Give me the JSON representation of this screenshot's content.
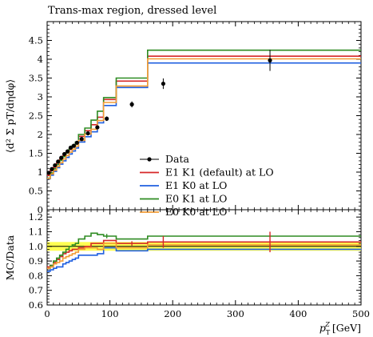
{
  "chart_data": [
    {
      "type": "line",
      "panel": "main",
      "title": "Trans-max region, dressed level",
      "ylabel": "⟨d² Σ pT/dηdφ⟩",
      "xlim": [
        0,
        500
      ],
      "ylim": [
        0,
        5
      ],
      "yticks": [
        "0",
        "0.5",
        "1",
        "1.5",
        "2",
        "2.5",
        "3",
        "3.5",
        "4",
        "4.5"
      ],
      "data_points": {
        "name": "Data",
        "x": [
          2.5,
          7.5,
          12.5,
          17.5,
          22.5,
          27.5,
          32.5,
          37.5,
          42.5,
          47.5,
          55,
          65,
          80,
          95,
          135,
          185,
          355
        ],
        "y": [
          0.98,
          1.08,
          1.18,
          1.28,
          1.38,
          1.48,
          1.55,
          1.65,
          1.7,
          1.78,
          1.88,
          2.03,
          2.19,
          2.42,
          2.8,
          3.35,
          3.97
        ],
        "yerr": [
          0.02,
          0.02,
          0.02,
          0.02,
          0.02,
          0.02,
          0.02,
          0.03,
          0.03,
          0.03,
          0.04,
          0.04,
          0.05,
          0.06,
          0.08,
          0.14,
          0.28
        ]
      },
      "bin_edges": [
        0,
        5,
        10,
        15,
        20,
        25,
        30,
        35,
        40,
        45,
        50,
        60,
        70,
        80,
        90,
        110,
        160,
        210,
        500
      ],
      "series": [
        {
          "name": "E1 K1 (default) at LO",
          "color": "#d62728",
          "values": [
            0.91,
            1.04,
            1.13,
            1.24,
            1.34,
            1.43,
            1.51,
            1.6,
            1.68,
            1.76,
            1.95,
            2.1,
            2.26,
            2.46,
            2.93,
            3.42,
            4.08,
            4.08
          ]
        },
        {
          "name": "E1 K0 at LO",
          "color": "#1f5fe0",
          "values": [
            0.82,
            0.92,
            1.02,
            1.12,
            1.21,
            1.3,
            1.39,
            1.48,
            1.56,
            1.64,
            1.8,
            1.94,
            2.07,
            2.31,
            2.77,
            3.25,
            3.9,
            3.9
          ]
        },
        {
          "name": "E0 K1 at LO",
          "color": "#2e8b22",
          "values": [
            0.84,
            0.98,
            1.09,
            1.2,
            1.31,
            1.41,
            1.51,
            1.62,
            1.71,
            1.8,
            2.0,
            2.17,
            2.38,
            2.62,
            2.98,
            3.5,
            4.24,
            4.24
          ]
        },
        {
          "name": "E0 K0 at LO",
          "color": "#f39c34",
          "values": [
            0.83,
            0.95,
            1.05,
            1.15,
            1.25,
            1.35,
            1.44,
            1.53,
            1.61,
            1.69,
            1.84,
            2.01,
            2.14,
            2.37,
            2.85,
            3.29,
            4.01,
            4.01
          ]
        }
      ],
      "legend": {
        "position": "center-right",
        "data_label": "Data"
      },
      "grid": false
    },
    {
      "type": "line",
      "panel": "ratio",
      "ylabel": "MC/Data",
      "xlabel": "pTZ [GeV]",
      "xlim": [
        0,
        500
      ],
      "ylim": [
        0.6,
        1.25
      ],
      "yticks": [
        "0.6",
        "0.7",
        "0.8",
        "0.9",
        "1.0",
        "1.1",
        "1.2"
      ],
      "xticks": [
        "0",
        "100",
        "200",
        "300",
        "400",
        "500"
      ],
      "band": {
        "color": "#ffff33",
        "lower": 0.97,
        "upper": 1.03
      },
      "reference_line": 1.0,
      "bin_edges": [
        0,
        5,
        10,
        15,
        20,
        25,
        30,
        35,
        40,
        45,
        50,
        60,
        70,
        80,
        90,
        110,
        160,
        210,
        500
      ],
      "series": [
        {
          "name": "E1 K1 (default) at LO",
          "color": "#d62728",
          "values": [
            0.86,
            0.87,
            0.89,
            0.91,
            0.93,
            0.95,
            0.96,
            0.97,
            0.98,
            0.98,
            0.99,
            1.0,
            1.02,
            1.02,
            1.04,
            1.02,
            1.03,
            1.03
          ]
        },
        {
          "name": "E1 K0 at LO",
          "color": "#1f5fe0",
          "values": [
            0.83,
            0.84,
            0.85,
            0.86,
            0.86,
            0.88,
            0.89,
            0.9,
            0.91,
            0.92,
            0.94,
            0.94,
            0.94,
            0.95,
            0.99,
            0.97,
            0.98,
            0.98
          ]
        },
        {
          "name": "E0 K1 at LO",
          "color": "#2e8b22",
          "values": [
            0.85,
            0.87,
            0.9,
            0.92,
            0.94,
            0.96,
            0.98,
            1.0,
            1.01,
            1.02,
            1.05,
            1.07,
            1.09,
            1.08,
            1.07,
            1.05,
            1.07,
            1.07
          ]
        },
        {
          "name": "E0 K0 at LO",
          "color": "#f39c34",
          "values": [
            0.85,
            0.86,
            0.88,
            0.89,
            0.9,
            0.92,
            0.93,
            0.94,
            0.95,
            0.96,
            0.98,
            0.99,
            0.99,
            0.98,
            1.02,
            0.99,
            1.01,
            1.01
          ]
        }
      ],
      "error_bars": [
        {
          "x": 95,
          "series_index": 2,
          "err": 0.015
        },
        {
          "x": 135,
          "series_index": 0,
          "err": 0.015
        },
        {
          "x": 185,
          "series_index": 0,
          "err": 0.04
        },
        {
          "x": 355,
          "series_index": 0,
          "err": 0.07
        }
      ]
    }
  ]
}
